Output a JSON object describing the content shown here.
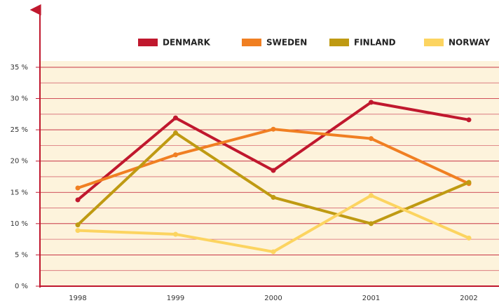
{
  "chart_data": {
    "type": "line",
    "categories": [
      "1998",
      "1999",
      "2000",
      "2001",
      "2002"
    ],
    "series": [
      {
        "name": "DENMARK",
        "color": "#c0182e",
        "values": [
          13.8,
          26.9,
          18.5,
          29.4,
          26.6
        ]
      },
      {
        "name": "SWEDEN",
        "color": "#f07f22",
        "values": [
          15.7,
          21,
          25.1,
          23.6,
          16.4
        ]
      },
      {
        "name": "FINLAND",
        "color": "#bf9a12",
        "values": [
          9.8,
          24.5,
          14.2,
          10,
          16.6
        ]
      },
      {
        "name": "NORWAY",
        "color": "#fcd460",
        "values": [
          8.9,
          8.3,
          5.5,
          14.5,
          7.7
        ]
      }
    ],
    "ylim": [
      0,
      36
    ],
    "yticks": [
      {
        "value": 0,
        "label": "0 %"
      },
      {
        "value": 5,
        "label": "5 %"
      },
      {
        "value": 10,
        "label": "10 %"
      },
      {
        "value": 15,
        "label": "15 %"
      },
      {
        "value": 20,
        "label": "20 %"
      },
      {
        "value": 25,
        "label": "25 %"
      },
      {
        "value": 30,
        "label": "30 %"
      },
      {
        "value": 35,
        "label": "35 %"
      }
    ],
    "minor_yticks": [
      2.5,
      7.5,
      12.5,
      17.5,
      22.5,
      27.5,
      32.5
    ],
    "grid": true
  }
}
